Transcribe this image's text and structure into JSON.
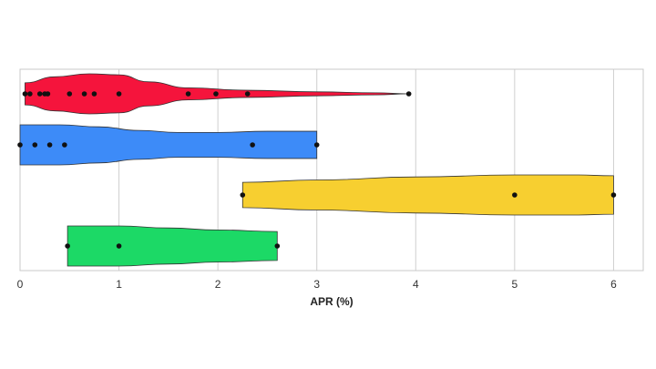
{
  "chart_data": {
    "type": "violin",
    "orientation": "horizontal",
    "title": "",
    "xlabel": "APR (%)",
    "ylabel": "",
    "xlim": [
      0,
      6.3
    ],
    "x_ticks": [
      0,
      1,
      2,
      3,
      4,
      5,
      6
    ],
    "x_tick_labels": [
      "0",
      "1",
      "2",
      "3",
      "4",
      "5",
      "6"
    ],
    "grid": "vertical",
    "legend": "none",
    "series": [
      {
        "color": "#f5143c",
        "points": [
          0.05,
          0.1,
          0.2,
          0.25,
          0.28,
          0.5,
          0.65,
          0.75,
          1.0,
          1.7,
          1.98,
          2.3,
          3.93
        ],
        "profile": [
          [
            0.05,
            0.55
          ],
          [
            0.35,
            0.85
          ],
          [
            0.7,
            1.0
          ],
          [
            1.0,
            0.95
          ],
          [
            1.3,
            0.6
          ],
          [
            1.7,
            0.3
          ],
          [
            2.3,
            0.18
          ],
          [
            3.0,
            0.1
          ],
          [
            3.6,
            0.05
          ],
          [
            3.93,
            0.0
          ]
        ]
      },
      {
        "color": "#3d8bf8",
        "points": [
          0.0,
          0.15,
          0.3,
          0.45,
          2.35,
          3.0
        ],
        "profile": [
          [
            0.0,
            1.0
          ],
          [
            0.4,
            1.0
          ],
          [
            0.8,
            0.9
          ],
          [
            1.2,
            0.72
          ],
          [
            1.6,
            0.62
          ],
          [
            2.0,
            0.62
          ],
          [
            2.5,
            0.68
          ],
          [
            3.0,
            0.68
          ]
        ]
      },
      {
        "color": "#f7cf30",
        "points": [
          2.25,
          5.0,
          6.0
        ],
        "profile": [
          [
            2.25,
            0.63
          ],
          [
            3.0,
            0.75
          ],
          [
            4.0,
            0.9
          ],
          [
            5.0,
            1.0
          ],
          [
            5.6,
            1.0
          ],
          [
            6.0,
            0.96
          ]
        ]
      },
      {
        "color": "#1cd966",
        "points": [
          0.48,
          1.0,
          2.6
        ],
        "profile": [
          [
            0.48,
            1.0
          ],
          [
            1.0,
            1.0
          ],
          [
            1.5,
            0.9
          ],
          [
            2.0,
            0.8
          ],
          [
            2.6,
            0.72
          ]
        ]
      }
    ]
  }
}
